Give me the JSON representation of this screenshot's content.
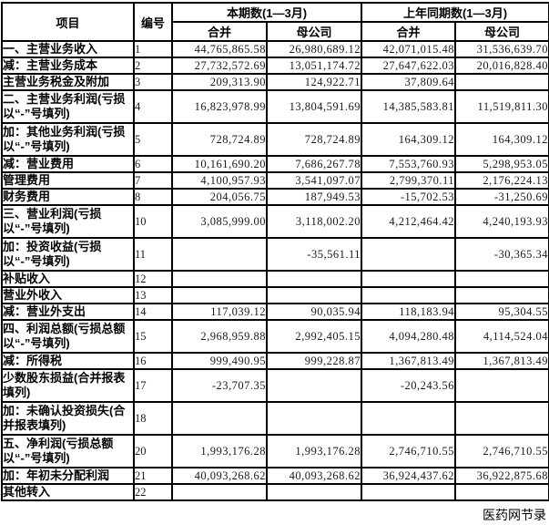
{
  "meta": {
    "watermark": "医药网节录"
  },
  "table": {
    "headers": {
      "item": "项目",
      "no": "编号",
      "current_period": "本期数(1—3月)",
      "prior_period": "上年同期数(1—3月)"
    },
    "sub_headers": [
      "合并",
      "母公司",
      "合并",
      "母公司"
    ],
    "rows": [
      {
        "label": "一、主营业务收入",
        "no": "1",
        "lines": 1,
        "values": [
          "44,765,865.58",
          "26,980,689.12",
          "42,071,015.48",
          "31,536,639.70"
        ]
      },
      {
        "label": "减：主营业务成本",
        "no": "2",
        "lines": 1,
        "values": [
          "27,732,572.69",
          "13,051,174.72",
          "27,647,622.03",
          "20,016,828.40"
        ]
      },
      {
        "label": "主营业务税金及附加",
        "no": "3",
        "lines": 1,
        "values": [
          "209,313.90",
          "124,922.71",
          "37,809.64",
          ""
        ]
      },
      {
        "label": "二、主营业务利润(亏损以“-”号填列)",
        "no": "4",
        "lines": 2,
        "values": [
          "16,823,978.99",
          "13,804,591.69",
          "14,385,583.81",
          "11,519,811.30"
        ]
      },
      {
        "label": "加：其他业务利润(亏损以“-”号填列)",
        "no": "5",
        "lines": 2,
        "values": [
          "728,724.89",
          "728,724.89",
          "164,309.12",
          "164,309.12"
        ]
      },
      {
        "label": "减：营业费用",
        "no": "6",
        "lines": 1,
        "values": [
          "10,161,690.20",
          "7,686,267.78",
          "7,553,760.93",
          "5,298,953.05"
        ]
      },
      {
        "label": "管理费用",
        "no": "7",
        "lines": 1,
        "values": [
          "4,100,957.93",
          "3,541,097.07",
          "2,799,370.11",
          "2,176,224.13"
        ]
      },
      {
        "label": "财务费用",
        "no": "8",
        "lines": 1,
        "values": [
          "204,056.75",
          "187,949.53",
          "-15,702.53",
          "-31,250.69"
        ]
      },
      {
        "label": "三、营业利润(亏损以“-”号填列)",
        "no": "10",
        "lines": 2,
        "values": [
          "3,085,999.00",
          "3,118,002.20",
          "4,212,464.42",
          "4,240,193.93"
        ]
      },
      {
        "label": "加：投资收益(亏损以“-”号填列)",
        "no": "11",
        "lines": 2,
        "values": [
          "",
          "-35,561.11",
          "",
          "-30,365.34"
        ]
      },
      {
        "label": "补贴收入",
        "no": "12",
        "lines": 1,
        "values": [
          "",
          "",
          "",
          ""
        ]
      },
      {
        "label": "营业外收入",
        "no": "13",
        "lines": 1,
        "values": [
          "",
          "",
          "",
          ""
        ]
      },
      {
        "label": "减：营业外支出",
        "no": "14",
        "lines": 1,
        "values": [
          "117,039.12",
          "90,035.94",
          "118,183.94",
          "95,304.55"
        ]
      },
      {
        "label": "四、利润总额(亏损总额以“-”号填列)",
        "no": "15",
        "lines": 2,
        "values": [
          "2,968,959.88",
          "2,992,405.15",
          "4,094,280.48",
          "4,114,524.04"
        ]
      },
      {
        "label": "减：所得税",
        "no": "16",
        "lines": 1,
        "values": [
          "999,490.95",
          "999,228.87",
          "1,367,813.49",
          "1,367,813.49"
        ]
      },
      {
        "label": "少数股东损益(合并报表填列)",
        "no": "17",
        "lines": 2,
        "values": [
          "-23,707.35",
          "",
          "-20,243.56",
          ""
        ]
      },
      {
        "label": "加：未确认投资损失(合并报表填列)",
        "no": "18",
        "lines": 2,
        "values": [
          "",
          "",
          "",
          ""
        ]
      },
      {
        "label": "五、净利润(亏损总额以“-”号填列)",
        "no": "20",
        "lines": 2,
        "values": [
          "1,993,176.28",
          "1,993,176.28",
          "2,746,710.55",
          "2,746,710.55"
        ]
      },
      {
        "label": "加：年初未分配利润",
        "no": "21",
        "lines": 1,
        "values": [
          "40,093,268.62",
          "40,093,268.62",
          "36,924,437.62",
          "36,922,875.68"
        ]
      },
      {
        "label": "其他转入",
        "no": "22",
        "lines": 1,
        "values": [
          "",
          "",
          "",
          ""
        ]
      }
    ]
  }
}
